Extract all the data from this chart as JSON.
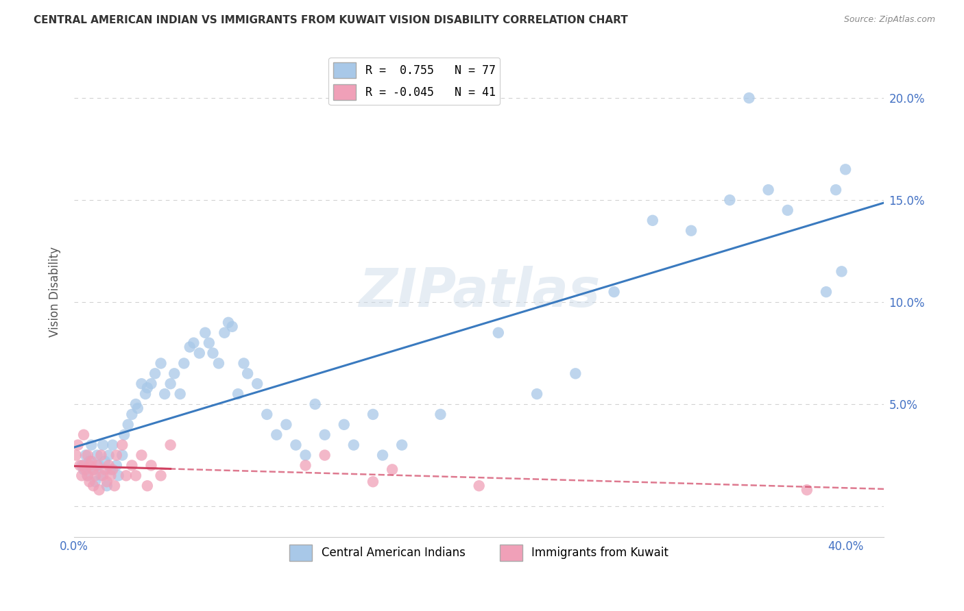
{
  "title": "CENTRAL AMERICAN INDIAN VS IMMIGRANTS FROM KUWAIT VISION DISABILITY CORRELATION CHART",
  "source": "Source: ZipAtlas.com",
  "ylabel": "Vision Disability",
  "watermark": "ZIPatlas",
  "legend_blue_r": "0.755",
  "legend_blue_n": "77",
  "legend_pink_r": "-0.045",
  "legend_pink_n": "41",
  "legend_blue_label": "Central American Indians",
  "legend_pink_label": "Immigrants from Kuwait",
  "xlim": [
    0.0,
    0.42
  ],
  "ylim": [
    -0.015,
    0.225
  ],
  "blue_color": "#a8c8e8",
  "blue_line_color": "#3a7abf",
  "pink_color": "#f0a0b8",
  "pink_line_color": "#d04060",
  "blue_points_x": [
    0.004,
    0.005,
    0.006,
    0.007,
    0.008,
    0.009,
    0.01,
    0.011,
    0.012,
    0.013,
    0.014,
    0.015,
    0.016,
    0.017,
    0.018,
    0.019,
    0.02,
    0.022,
    0.023,
    0.025,
    0.026,
    0.028,
    0.03,
    0.032,
    0.033,
    0.035,
    0.037,
    0.038,
    0.04,
    0.042,
    0.045,
    0.047,
    0.05,
    0.052,
    0.055,
    0.057,
    0.06,
    0.062,
    0.065,
    0.068,
    0.07,
    0.072,
    0.075,
    0.078,
    0.08,
    0.082,
    0.085,
    0.088,
    0.09,
    0.095,
    0.1,
    0.105,
    0.11,
    0.115,
    0.12,
    0.125,
    0.13,
    0.14,
    0.145,
    0.155,
    0.16,
    0.17,
    0.19,
    0.22,
    0.24,
    0.26,
    0.28,
    0.3,
    0.32,
    0.34,
    0.35,
    0.36,
    0.37,
    0.39,
    0.395,
    0.398,
    0.4
  ],
  "blue_points_y": [
    0.02,
    0.018,
    0.025,
    0.015,
    0.022,
    0.03,
    0.018,
    0.012,
    0.025,
    0.02,
    0.015,
    0.03,
    0.022,
    0.01,
    0.025,
    0.018,
    0.03,
    0.02,
    0.015,
    0.025,
    0.035,
    0.04,
    0.045,
    0.05,
    0.048,
    0.06,
    0.055,
    0.058,
    0.06,
    0.065,
    0.07,
    0.055,
    0.06,
    0.065,
    0.055,
    0.07,
    0.078,
    0.08,
    0.075,
    0.085,
    0.08,
    0.075,
    0.07,
    0.085,
    0.09,
    0.088,
    0.055,
    0.07,
    0.065,
    0.06,
    0.045,
    0.035,
    0.04,
    0.03,
    0.025,
    0.05,
    0.035,
    0.04,
    0.03,
    0.045,
    0.025,
    0.03,
    0.045,
    0.085,
    0.055,
    0.065,
    0.105,
    0.14,
    0.135,
    0.15,
    0.2,
    0.155,
    0.145,
    0.105,
    0.155,
    0.115,
    0.165
  ],
  "pink_points_x": [
    0.001,
    0.002,
    0.003,
    0.004,
    0.005,
    0.005,
    0.006,
    0.007,
    0.007,
    0.008,
    0.008,
    0.009,
    0.01,
    0.01,
    0.011,
    0.012,
    0.013,
    0.014,
    0.015,
    0.016,
    0.017,
    0.018,
    0.019,
    0.02,
    0.021,
    0.022,
    0.025,
    0.027,
    0.03,
    0.032,
    0.035,
    0.038,
    0.04,
    0.045,
    0.05,
    0.12,
    0.13,
    0.155,
    0.165,
    0.21,
    0.38
  ],
  "pink_points_y": [
    0.025,
    0.03,
    0.02,
    0.015,
    0.035,
    0.02,
    0.018,
    0.025,
    0.015,
    0.02,
    0.012,
    0.022,
    0.018,
    0.01,
    0.015,
    0.02,
    0.008,
    0.025,
    0.015,
    0.018,
    0.012,
    0.02,
    0.015,
    0.018,
    0.01,
    0.025,
    0.03,
    0.015,
    0.02,
    0.015,
    0.025,
    0.01,
    0.02,
    0.015,
    0.03,
    0.02,
    0.025,
    0.012,
    0.018,
    0.01,
    0.008
  ],
  "background_color": "#ffffff",
  "grid_color": "#cccccc"
}
